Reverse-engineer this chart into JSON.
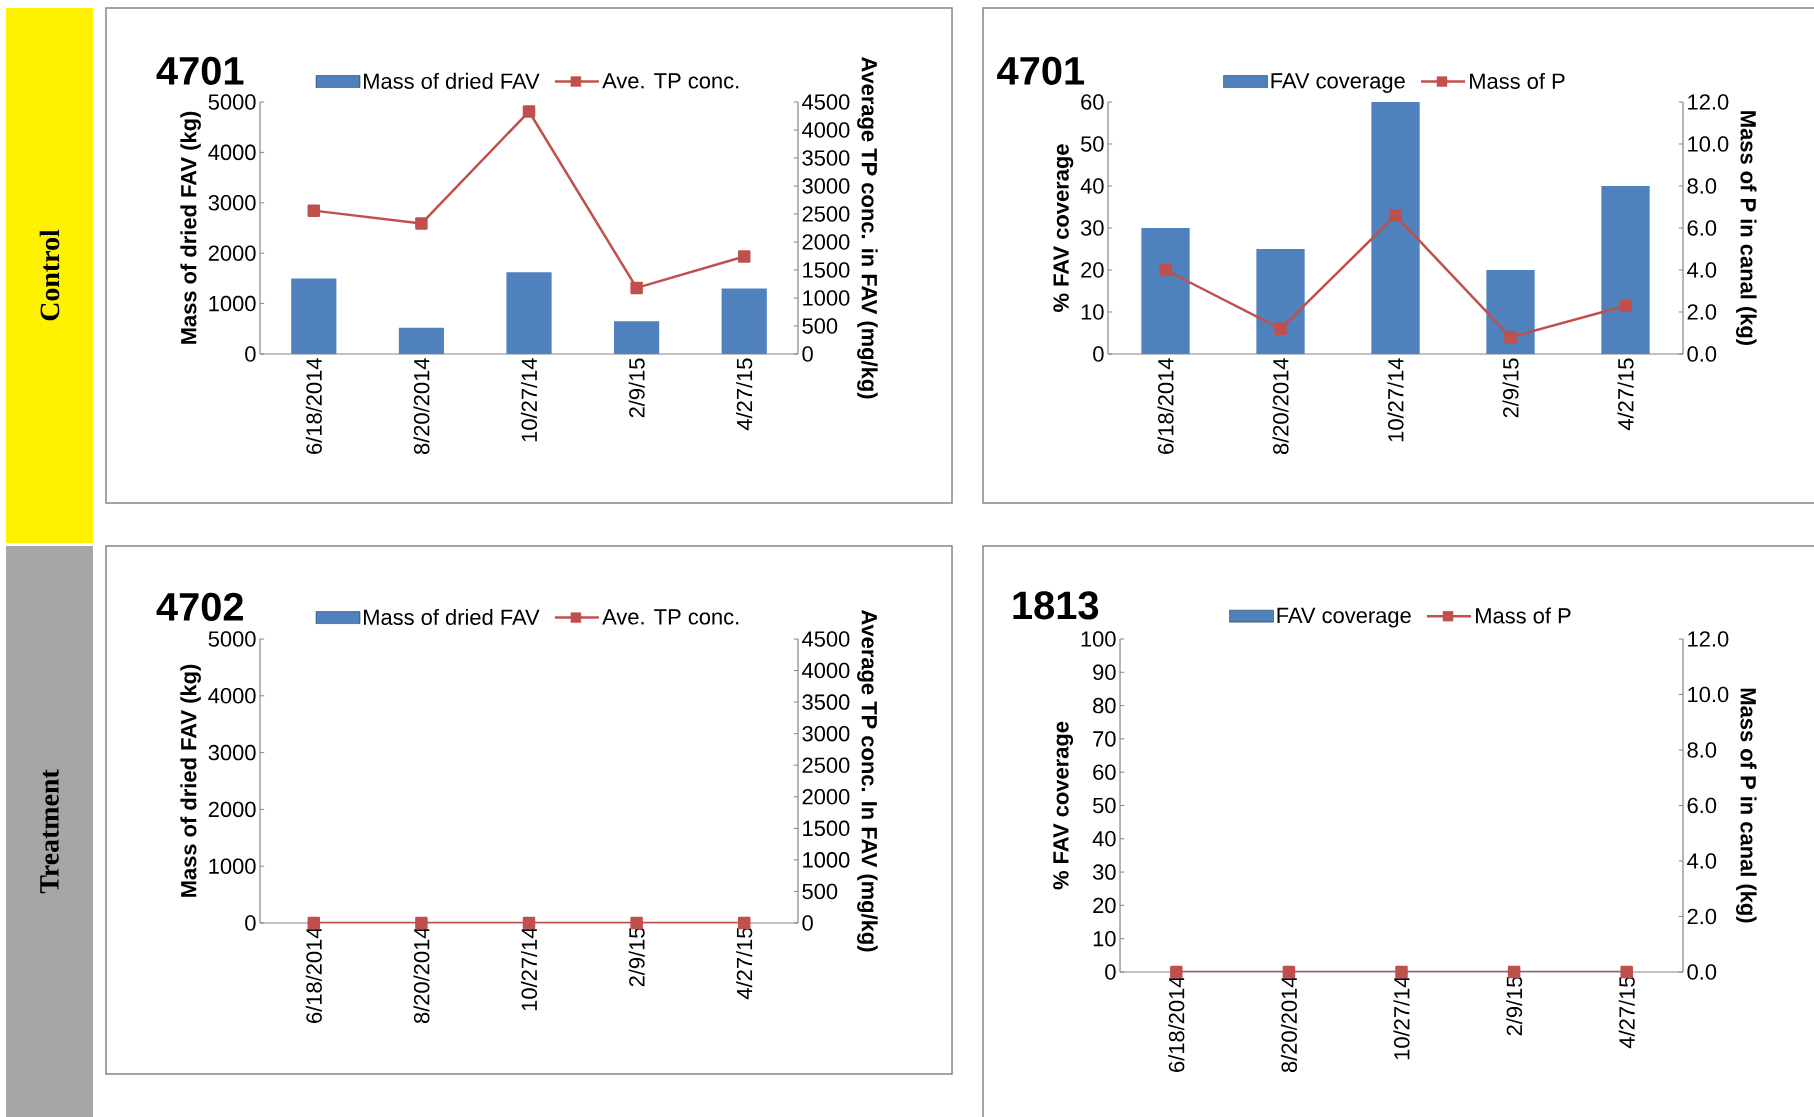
{
  "chart_data": [
    {
      "type": "bar",
      "title": "4701",
      "ylabel": "Mass of dried FAV (kg)",
      "y2label": "Average TP conc. in FAV (mg/kg)",
      "annotations": [
        "Control"
      ],
      "categories": [
        "6/18/2014",
        "8/20/2014",
        "10/27/14",
        "2/9/15",
        "4/27/15"
      ],
      "series": [
        {
          "name": "Mass of dried FAV",
          "color": "#4f81bd",
          "values": [
            1500,
            520,
            1620,
            650,
            1300
          ]
        },
        {
          "name": "Ave. TP conc.",
          "type": "line",
          "axis": "y2",
          "color": "#c0504d",
          "values": [
            2560,
            2330,
            4330,
            1180,
            1740
          ]
        }
      ],
      "ylim": [
        0,
        5000
      ],
      "yticks": [
        0,
        1000,
        2000,
        3000,
        4000,
        5000
      ],
      "y2lim": [
        0,
        4500
      ],
      "y2ticks": [
        0,
        500,
        1000,
        1500,
        2000,
        2500,
        3000,
        3500,
        4000,
        4500
      ],
      "marker": "square",
      "legend": "top"
    },
    {
      "type": "bar",
      "title": "4701",
      "ylabel": "% FAV coverage",
      "y2label": "Mass of P in canal (kg)",
      "categories": [
        "6/18/2014",
        "8/20/2014",
        "10/27/14",
        "2/9/15",
        "4/27/15"
      ],
      "series": [
        {
          "name": "FAV coverage",
          "color": "#4f81bd",
          "values": [
            30,
            25,
            60,
            20,
            40
          ]
        },
        {
          "name": "Mass of P",
          "type": "line",
          "axis": "y2",
          "color": "#c0504d",
          "values": [
            4.0,
            1.2,
            6.6,
            0.8,
            2.3
          ]
        }
      ],
      "ylim": [
        0,
        60
      ],
      "yticks": [
        0,
        10,
        20,
        30,
        40,
        50,
        60
      ],
      "y2lim": [
        0,
        12
      ],
      "y2ticks": [
        {
          "value": 0,
          "label": "0.0"
        },
        {
          "value": 2,
          "label": "2.0"
        },
        {
          "value": 4,
          "label": "4.0"
        },
        {
          "value": 6,
          "label": "6.0"
        },
        {
          "value": 8,
          "label": "8.0"
        },
        {
          "value": 10,
          "label": "10.0"
        },
        {
          "value": 12,
          "label": "12.0"
        }
      ],
      "marker": "square",
      "legend": "top"
    },
    {
      "type": "bar",
      "title": "4702",
      "ylabel": "Mass of dried FAV (kg)",
      "y2label": "Average TP conc. In FAV (mg/kg)",
      "annotations": [
        "Treatment"
      ],
      "categories": [
        "6/18/2014",
        "8/20/2014",
        "10/27/14",
        "2/9/15",
        "4/27/15"
      ],
      "series": [
        {
          "name": "Mass of dried FAV",
          "color": "#4f81bd",
          "values": [
            0,
            0,
            0,
            0,
            0
          ]
        },
        {
          "name": "Ave. TP conc.",
          "type": "line",
          "axis": "y2",
          "color": "#c0504d",
          "values": [
            0,
            0,
            0,
            0,
            0
          ]
        }
      ],
      "ylim": [
        0,
        5000
      ],
      "yticks": [
        0,
        1000,
        2000,
        3000,
        4000,
        5000
      ],
      "y2lim": [
        0,
        4500
      ],
      "y2ticks": [
        0,
        500,
        1000,
        1500,
        2000,
        2500,
        3000,
        3500,
        4000,
        4500
      ],
      "marker": "square",
      "legend": "top"
    },
    {
      "type": "bar",
      "title": "1813",
      "ylabel": "% FAV coverage",
      "y2label": "Mass of P in canal (kg)",
      "categories": [
        "6/18/2014",
        "8/20/2014",
        "10/27/14",
        "2/9/15",
        "4/27/15"
      ],
      "series": [
        {
          "name": "FAV coverage",
          "color": "#4f81bd",
          "values": [
            0,
            0,
            0,
            0,
            0
          ]
        },
        {
          "name": "Mass of P",
          "type": "line",
          "axis": "y2",
          "color": "#c0504d",
          "values": [
            0,
            0,
            0,
            0,
            0
          ]
        }
      ],
      "ylim": [
        0,
        100
      ],
      "yticks": [
        0,
        10,
        20,
        30,
        40,
        50,
        60,
        70,
        80,
        90,
        100
      ],
      "y2lim": [
        0,
        12
      ],
      "y2ticks": [
        {
          "value": 0,
          "label": "0.0"
        },
        {
          "value": 2,
          "label": "2.0"
        },
        {
          "value": 4,
          "label": "4.0"
        },
        {
          "value": 6,
          "label": "6.0"
        },
        {
          "value": 8,
          "label": "8.0"
        },
        {
          "value": 10,
          "label": "10.0"
        },
        {
          "value": 12,
          "label": "12.0"
        }
      ],
      "marker": "square",
      "legend": "top"
    }
  ]
}
